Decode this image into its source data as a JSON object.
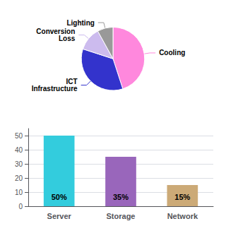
{
  "chart_data": [
    {
      "type": "pie",
      "categories": [
        "Cooling",
        "ICT\nInfrastructure",
        "Conversion\nLoss",
        "Lighting"
      ],
      "values": [
        45,
        35,
        12,
        8
      ],
      "colors": [
        "#ff88dd",
        "#3333cc",
        "#ccbbee",
        "#999999"
      ]
    },
    {
      "type": "bar",
      "categories": [
        "Server",
        "Storage",
        "Network"
      ],
      "values": [
        50,
        35,
        15
      ],
      "value_labels": [
        "50%",
        "35%",
        "15%"
      ],
      "data_labels": true,
      "colors": [
        "#33ccdd",
        "#9966bb",
        "#ccaa77"
      ],
      "ylim": [
        0,
        55
      ],
      "yticks": [
        0,
        10,
        20,
        30,
        40,
        50
      ],
      "grid": true
    }
  ]
}
